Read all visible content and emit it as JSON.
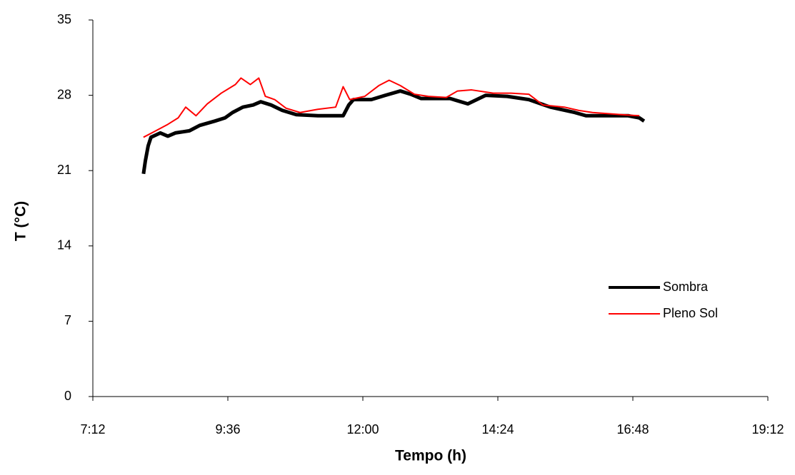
{
  "chart_data": {
    "type": "line",
    "x_label": "Tempo (h)",
    "y_label": "T (°C)",
    "xlim": [
      432,
      1152
    ],
    "xticks": [
      {
        "value": 432,
        "label": "7:12"
      },
      {
        "value": 576,
        "label": "9:36"
      },
      {
        "value": 720,
        "label": "12:00"
      },
      {
        "value": 864,
        "label": "14:24"
      },
      {
        "value": 1008,
        "label": "16:48"
      },
      {
        "value": 1152,
        "label": "19:12"
      }
    ],
    "ylim": [
      0,
      35
    ],
    "yticks": [
      0,
      7,
      14,
      21,
      28,
      35
    ],
    "legend": "right",
    "series": [
      {
        "name": "Sombra",
        "color": "#000000",
        "x": [
          486,
          488,
          491,
          494,
          504,
          512,
          520,
          535,
          546,
          562,
          573,
          581,
          592,
          603,
          611,
          622,
          634,
          649,
          672,
          699,
          705,
          710,
          729,
          744,
          760,
          771,
          782,
          813,
          832,
          851,
          874,
          897,
          920,
          946,
          958,
          1003,
          1015,
          1020
        ],
        "values": [
          20.7,
          21.9,
          23.3,
          24.1,
          24.5,
          24.2,
          24.5,
          24.7,
          25.2,
          25.6,
          25.9,
          26.4,
          26.9,
          27.1,
          27.4,
          27.1,
          26.6,
          26.2,
          26.1,
          26.1,
          27.1,
          27.6,
          27.6,
          28.0,
          28.4,
          28.1,
          27.7,
          27.7,
          27.2,
          28.0,
          27.9,
          27.6,
          26.9,
          26.4,
          26.1,
          26.1,
          25.9,
          25.6
        ]
      },
      {
        "name": "Pleno Sol",
        "color": "#ff0000",
        "x": [
          486,
          497,
          512,
          523,
          531,
          542,
          554,
          569,
          584,
          590,
          600,
          609,
          616,
          626,
          638,
          653,
          672,
          691,
          699,
          706,
          722,
          737,
          748,
          760,
          775,
          790,
          809,
          821,
          836,
          859,
          878,
          897,
          912,
          935,
          950,
          965,
          996,
          1015
        ],
        "values": [
          24.1,
          24.6,
          25.3,
          25.9,
          26.9,
          26.1,
          27.2,
          28.2,
          29.0,
          29.6,
          29.0,
          29.6,
          27.9,
          27.6,
          26.8,
          26.4,
          26.7,
          26.9,
          28.8,
          27.6,
          27.9,
          28.9,
          29.4,
          28.9,
          28.1,
          27.9,
          27.8,
          28.4,
          28.5,
          28.2,
          28.2,
          28.1,
          27.1,
          26.9,
          26.6,
          26.4,
          26.2,
          26.1
        ]
      }
    ]
  }
}
